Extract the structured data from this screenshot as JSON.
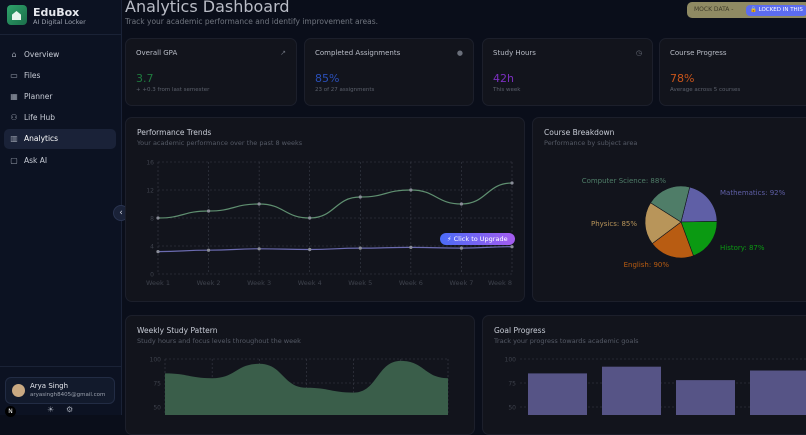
{
  "app": {
    "name": "EduBox",
    "tagline": "AI Digital Locker"
  },
  "sidebar": {
    "items": [
      {
        "label": "Overview",
        "icon": "home-icon",
        "glyph": "⌂"
      },
      {
        "label": "Files",
        "icon": "folder-icon",
        "glyph": "▭"
      },
      {
        "label": "Planner",
        "icon": "calendar-icon",
        "glyph": "▦"
      },
      {
        "label": "Life Hub",
        "icon": "users-icon",
        "glyph": "⚇"
      },
      {
        "label": "Analytics",
        "icon": "chart-icon",
        "glyph": "▥",
        "active": true
      },
      {
        "label": "Ask AI",
        "icon": "chat-icon",
        "glyph": "▢"
      }
    ],
    "collapse_glyph": "‹",
    "user": {
      "name": "Arya Singh",
      "email": "aryasingh8405@gmail.com"
    }
  },
  "header": {
    "title": "Analytics Dashboard",
    "subtitle": "Track your academic performance and identify improvement areas.",
    "mock_badge": "MOCK DATA -",
    "locked_badge": "LOCKED IN THIS"
  },
  "stats": [
    {
      "label": "Overall GPA",
      "value": "3.7",
      "sub": "+ +0.3 from last semester",
      "color": "#1f7a3e",
      "icon": "trend-up-icon",
      "glyph": "↗"
    },
    {
      "label": "Completed Assignments",
      "value": "85%",
      "sub": "23 of 27 assignments",
      "color": "#2a4fb8",
      "icon": "check-circle-icon",
      "glyph": "●"
    },
    {
      "label": "Study Hours",
      "value": "42h",
      "sub": "This week",
      "color": "#7b2fc0",
      "icon": "clock-icon",
      "glyph": "◷"
    },
    {
      "label": "Course Progress",
      "value": "78%",
      "sub": "Average across 5 courses",
      "color": "#c9551a",
      "icon": "",
      "glyph": ""
    }
  ],
  "upgrade_label": "Click to Upgrade",
  "colors": {
    "accent": "#5c6cf0",
    "green_line": "#5f8f70",
    "purple_line": "#6b6bb0"
  },
  "chart_data": [
    {
      "type": "line",
      "title": "Performance Trends",
      "subtitle": "Your academic performance over the past 8 weeks",
      "categories": [
        "Week 1",
        "Week 2",
        "Week 3",
        "Week 4",
        "Week 5",
        "Week 6",
        "Week 7",
        "Week 8"
      ],
      "ylim": [
        0,
        16
      ],
      "yticks": [
        0,
        4,
        8,
        12,
        16
      ],
      "grid": true,
      "series": [
        {
          "values": [
            8,
            9,
            10,
            8,
            11,
            12,
            10,
            13
          ],
          "color": "#5f8f70"
        },
        {
          "values": [
            3.2,
            3.4,
            3.6,
            3.5,
            3.7,
            3.8,
            3.7,
            3.9
          ],
          "color": "#6b6bb0"
        }
      ]
    },
    {
      "type": "pie",
      "title": "Course Breakdown",
      "subtitle": "Performance by subject area",
      "slices": [
        {
          "label": "Mathematics: 92%",
          "value": 92,
          "color": "#5f5fa6"
        },
        {
          "label": "History: 87%",
          "value": 87,
          "color": "#0b9a12"
        },
        {
          "label": "English: 90%",
          "value": 90,
          "color": "#b85c12"
        },
        {
          "label": "Physics: 85%",
          "value": 85,
          "color": "#b8955a"
        },
        {
          "label": "Computer Science: 88%",
          "value": 88,
          "color": "#4f7d68"
        }
      ]
    },
    {
      "type": "area",
      "title": "Weekly Study Pattern",
      "subtitle": "Study hours and focus levels throughout the week",
      "values": [
        85,
        80,
        95,
        70,
        65,
        98,
        80
      ],
      "yticks": [
        50,
        75,
        100
      ],
      "ylim": [
        0,
        100
      ],
      "color": "#3a5e4a",
      "grid": true
    },
    {
      "type": "bar",
      "title": "Goal Progress",
      "subtitle": "Track your progress towards academic goals",
      "values": [
        85,
        92,
        78,
        88
      ],
      "yticks": [
        50,
        75,
        100
      ],
      "ylim": [
        0,
        100
      ],
      "color": "#565486",
      "grid": true
    }
  ]
}
